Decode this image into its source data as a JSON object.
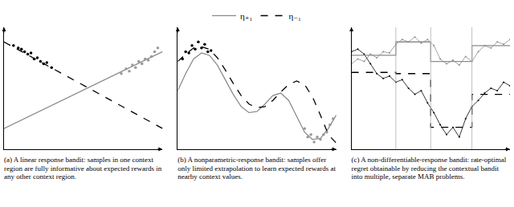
{
  "chart_data": [
    {
      "type": "line",
      "caption": "(a) A linear response bandit: samples in one context region are fully informative about expected rewards in any other context region.",
      "legend": "top",
      "tick_labels": false,
      "xlim": [
        0,
        1
      ],
      "ylim": [
        0,
        1
      ],
      "xticks": [],
      "yticks": [],
      "series": [
        {
          "name": "η₊₁",
          "type": "line",
          "color": "#8c8c8c",
          "line_style": "solid",
          "x": [
            0,
            1
          ],
          "values": [
            0.17,
            0.8
          ]
        },
        {
          "name": "η₋₁",
          "type": "line",
          "color": "#000000",
          "line_style": "dashed",
          "x": [
            0,
            1
          ],
          "values": [
            0.88,
            0.17
          ]
        },
        {
          "name": "η₋₁",
          "type": "scatter",
          "color": "#000000",
          "marker": "circle",
          "x": [
            0.06,
            0.09,
            0.11,
            0.13,
            0.15,
            0.17,
            0.19,
            0.21,
            0.23,
            0.25,
            0.27,
            0.3
          ],
          "values": [
            0.85,
            0.83,
            0.82,
            0.8,
            0.78,
            0.79,
            0.74,
            0.75,
            0.72,
            0.7,
            0.71,
            0.67
          ]
        },
        {
          "name": "η₊₁",
          "type": "scatter",
          "color": "#999999",
          "marker": "circle",
          "x": [
            0.74,
            0.77,
            0.79,
            0.81,
            0.83,
            0.85,
            0.87,
            0.89,
            0.91,
            0.93,
            0.95,
            0.97
          ],
          "values": [
            0.62,
            0.66,
            0.64,
            0.69,
            0.67,
            0.72,
            0.7,
            0.74,
            0.73,
            0.76,
            0.8,
            0.83
          ]
        }
      ]
    },
    {
      "type": "line",
      "caption": "(b) A nonparametric-response bandit: samples offer only limited extrapolation to learn expected rewards at nearby context values.",
      "tick_labels": false,
      "xlim": [
        0,
        1
      ],
      "ylim": [
        0,
        1
      ],
      "xticks": [],
      "yticks": [],
      "series": [
        {
          "name": "η₊₁",
          "type": "line",
          "color": "#8c8c8c",
          "line_style": "solid",
          "x": [
            0,
            0.05,
            0.1,
            0.15,
            0.2,
            0.25,
            0.3,
            0.35,
            0.4,
            0.45,
            0.5,
            0.55,
            0.6,
            0.65,
            0.7,
            0.75,
            0.8,
            0.85,
            0.9,
            0.95,
            1
          ],
          "values": [
            0.48,
            0.62,
            0.74,
            0.79,
            0.77,
            0.69,
            0.57,
            0.45,
            0.35,
            0.3,
            0.31,
            0.37,
            0.44,
            0.46,
            0.4,
            0.27,
            0.14,
            0.08,
            0.09,
            0.17,
            0.28
          ]
        },
        {
          "name": "η₋₁",
          "type": "line",
          "color": "#000000",
          "line_style": "dashed",
          "x": [
            0,
            0.05,
            0.1,
            0.15,
            0.2,
            0.25,
            0.3,
            0.35,
            0.4,
            0.45,
            0.5,
            0.55,
            0.6,
            0.65,
            0.7,
            0.75,
            0.8,
            0.85,
            0.9,
            0.95,
            1
          ],
          "values": [
            0.72,
            0.78,
            0.83,
            0.84,
            0.82,
            0.75,
            0.65,
            0.54,
            0.44,
            0.37,
            0.34,
            0.35,
            0.4,
            0.47,
            0.53,
            0.56,
            0.53,
            0.43,
            0.28,
            0.12,
            0.05
          ]
        },
        {
          "name": "η₋₁",
          "type": "scatter",
          "color": "#000000",
          "marker": "circle",
          "x": [
            0.03,
            0.05,
            0.07,
            0.09,
            0.11,
            0.13,
            0.15,
            0.17,
            0.19,
            0.21
          ],
          "values": [
            0.74,
            0.8,
            0.79,
            0.85,
            0.82,
            0.88,
            0.83,
            0.86,
            0.8,
            0.81
          ]
        },
        {
          "name": "η₊₁",
          "type": "scatter",
          "color": "#999999",
          "marker": "circle",
          "x": [
            0.8,
            0.82,
            0.84,
            0.86,
            0.88,
            0.9,
            0.92,
            0.94,
            0.96,
            0.98
          ],
          "values": [
            0.17,
            0.1,
            0.12,
            0.06,
            0.1,
            0.08,
            0.12,
            0.14,
            0.2,
            0.25
          ]
        }
      ]
    },
    {
      "type": "line",
      "caption": "(c) A non-differentiable-response bandit: rate-optimal regret obtainable by reducing the contextual bandit into multiple, separate MAB problems.",
      "tick_labels": false,
      "xlim": [
        0,
        1
      ],
      "ylim": [
        0,
        1
      ],
      "xticks": [],
      "yticks": [],
      "boundaries": [
        0.28,
        0.5,
        0.76
      ],
      "series": [
        {
          "name": "η₊₁",
          "type": "line",
          "color": "#8c8c8c",
          "line_style": "solid",
          "marker": "circle",
          "x": [
            0,
            0.04,
            0.08,
            0.12,
            0.16,
            0.2,
            0.24,
            0.28,
            0.32,
            0.36,
            0.4,
            0.44,
            0.48,
            0.52,
            0.56,
            0.6,
            0.64,
            0.68,
            0.72,
            0.76,
            0.8,
            0.84,
            0.88,
            0.92,
            0.96,
            1
          ],
          "values": [
            0.7,
            0.74,
            0.72,
            0.78,
            0.75,
            0.8,
            0.79,
            0.86,
            0.9,
            0.88,
            0.92,
            0.87,
            0.9,
            0.85,
            0.74,
            0.7,
            0.73,
            0.69,
            0.76,
            0.72,
            0.8,
            0.85,
            0.83,
            0.88,
            0.86,
            0.9
          ]
        },
        {
          "name": "η₋₁",
          "type": "line",
          "color": "#000000",
          "line_style": "solid",
          "marker": "circle",
          "x": [
            0,
            0.04,
            0.08,
            0.12,
            0.16,
            0.2,
            0.24,
            0.28,
            0.32,
            0.36,
            0.4,
            0.44,
            0.48,
            0.52,
            0.56,
            0.6,
            0.64,
            0.68,
            0.72,
            0.76,
            0.8,
            0.84,
            0.88,
            0.92,
            0.96,
            1
          ],
          "values": [
            0.8,
            0.82,
            0.78,
            0.7,
            0.62,
            0.58,
            0.6,
            0.55,
            0.57,
            0.5,
            0.45,
            0.48,
            0.38,
            0.3,
            0.2,
            0.12,
            0.18,
            0.1,
            0.25,
            0.35,
            0.4,
            0.46,
            0.5,
            0.48,
            0.55,
            0.52
          ]
        },
        {
          "name": "η₊₁",
          "type": "step",
          "color": "#8c8c8c",
          "line_style": "solid",
          "x": [
            0,
            0.28,
            0.5,
            0.76,
            1
          ],
          "values": [
            0.77,
            0.88,
            0.72,
            0.85,
            0.85
          ]
        },
        {
          "name": "η₋₁",
          "type": "step",
          "color": "#000000",
          "line_style": "dashed",
          "x": [
            0,
            0.28,
            0.5,
            0.76,
            1
          ],
          "values": [
            0.63,
            0.62,
            0.18,
            0.45,
            0.45
          ]
        }
      ]
    }
  ]
}
